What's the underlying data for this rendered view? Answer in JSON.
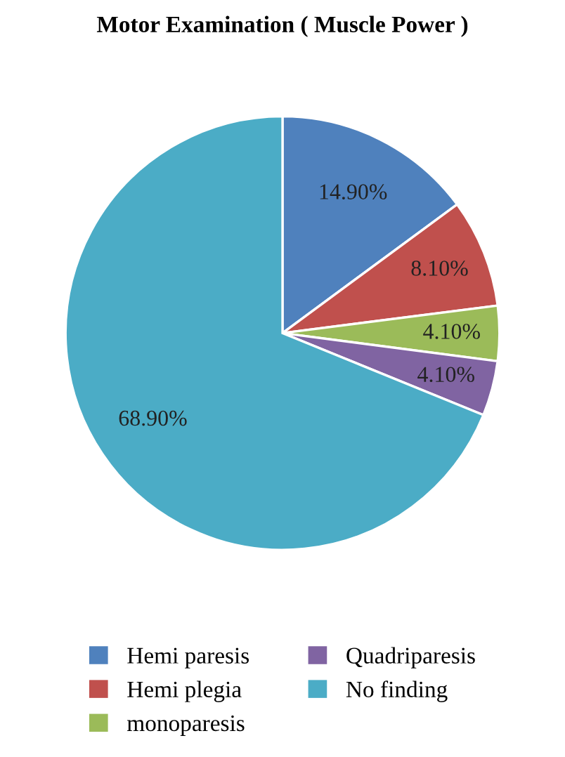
{
  "chart_data": {
    "type": "pie",
    "title": "Motor Examination ( Muscle Power )",
    "categories": [
      "Hemi paresis",
      "Hemi plegia",
      "monoparesis",
      "Quadriparesis",
      "No finding"
    ],
    "values": [
      14.9,
      8.1,
      4.1,
      4.1,
      68.9
    ],
    "colors": [
      "#4f81bd",
      "#c0504d",
      "#9bbb59",
      "#8064a2",
      "#4bacc6"
    ],
    "value_labels": [
      "14.90%",
      "8.10%",
      "4.10%",
      "4.10%",
      "68.90%"
    ],
    "legend": "bottom"
  }
}
